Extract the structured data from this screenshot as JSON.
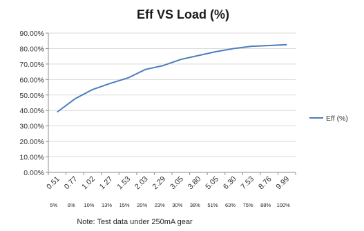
{
  "chart_data": {
    "type": "line",
    "title": "Eff VS Load  (%)",
    "xlabel": "",
    "ylabel": "",
    "categories": [
      "0.51",
      "0.77",
      "1.02",
      "1.27",
      "1.53",
      "2.03",
      "2.29",
      "3.05",
      "3.80",
      "5.05",
      "6.30",
      "7.53",
      "8.76",
      "9.99"
    ],
    "load_percent_labels": [
      "5%",
      "8%",
      "10%",
      "13%",
      "15%",
      "20%",
      "23%",
      "30%",
      "38%",
      "51%",
      "63%",
      "75%",
      "88%",
      "100%"
    ],
    "series": [
      {
        "name": "Eff  (%)",
        "values": [
          39.0,
          47.5,
          53.5,
          57.5,
          61.0,
          66.5,
          69.0,
          73.0,
          75.5,
          78.0,
          80.0,
          81.5,
          82.0,
          82.5
        ],
        "color": "#4a7ebb"
      }
    ],
    "ylim": [
      0,
      90
    ],
    "yticks": [
      0,
      10,
      20,
      30,
      40,
      50,
      60,
      70,
      80,
      90
    ],
    "ytick_labels": [
      "0.00%",
      "10.00%",
      "20.00%",
      "30.00%",
      "40.00%",
      "50.00%",
      "60.00%",
      "70.00%",
      "80.00%",
      "90.00%"
    ],
    "grid": true,
    "legend": "right",
    "gridline_color": "#d9d9d9",
    "axis_color": "#8c8c8c"
  },
  "note": "Note: Test data under 250mA gear"
}
